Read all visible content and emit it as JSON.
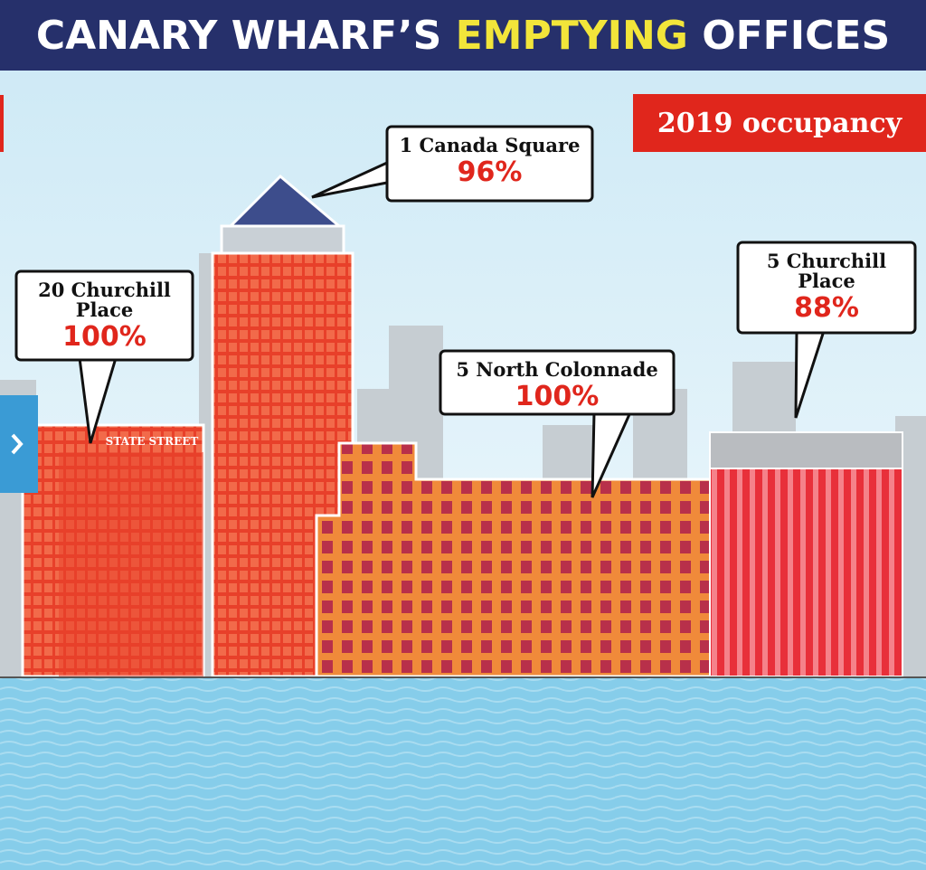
{
  "header": {
    "title_parts": [
      "CANARY WHARF’S",
      "EMPTYING",
      "OFFICES"
    ]
  },
  "badge": "2019 occupancy",
  "sign": "STATE STREET",
  "buildings": [
    {
      "name_lines": [
        "20 Churchill",
        "Place"
      ],
      "occupancy": "100%"
    },
    {
      "name_lines": [
        "1 Canada Square"
      ],
      "occupancy": "96%"
    },
    {
      "name_lines": [
        "5 North Colonnade"
      ],
      "occupancy": "100%"
    },
    {
      "name_lines": [
        "5 Churchill",
        "Place"
      ],
      "occupancy": "88%"
    }
  ]
}
